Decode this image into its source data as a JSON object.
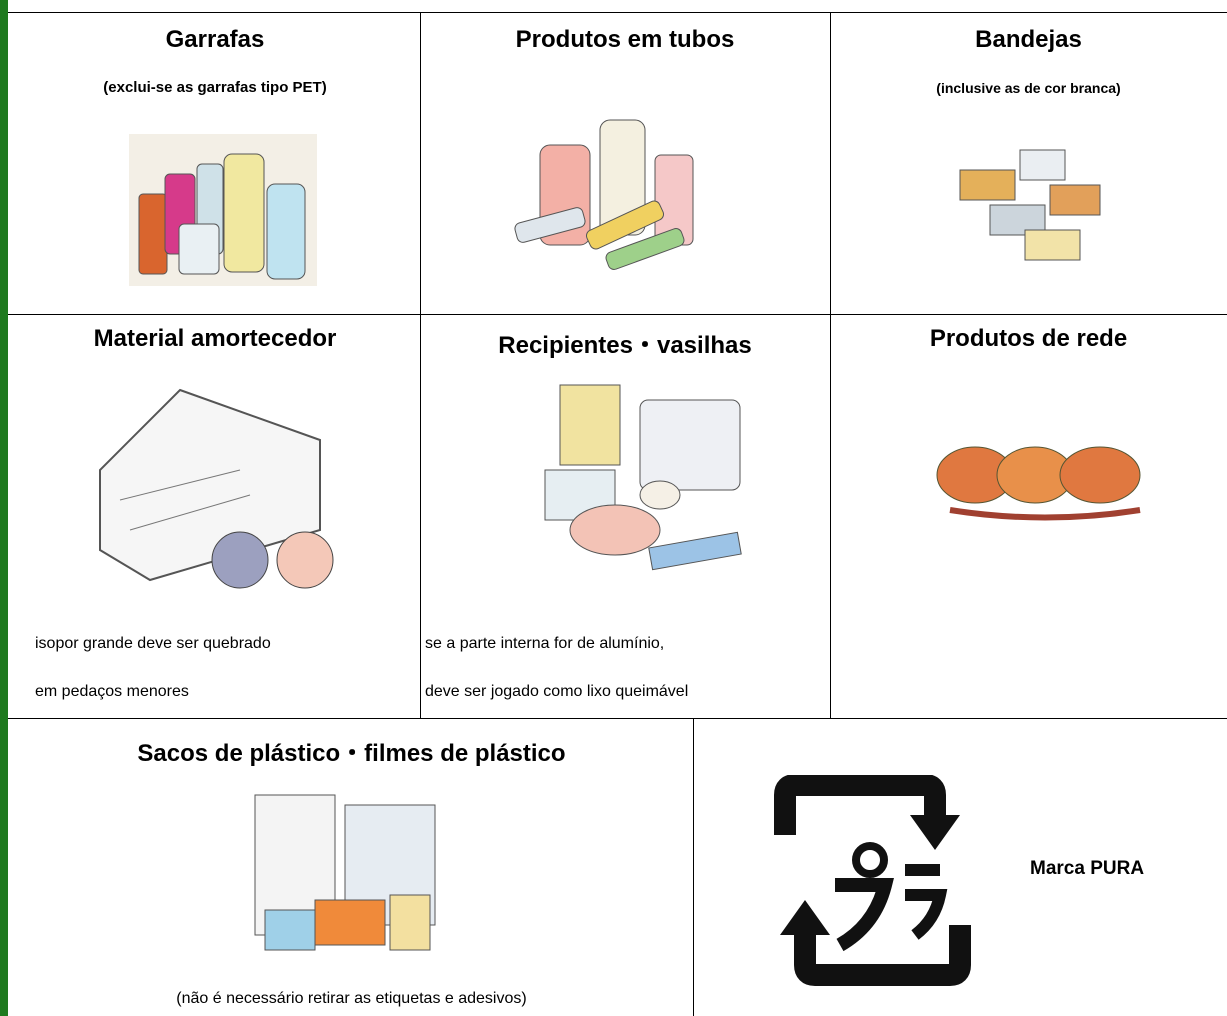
{
  "cells": [
    {
      "title": "Garrafas",
      "subtitle": "(exclui-se as garrafas tipo PET)"
    },
    {
      "title": "Produtos em tubos"
    },
    {
      "title": "Bandejas",
      "subtitle": "(inclusive as de cor branca)"
    },
    {
      "title": "Material amortecedor",
      "notes": [
        "isopor grande deve ser quebrado",
        "em pedaços menores"
      ]
    },
    {
      "title": "Recipientes・vasilhas",
      "notes": [
        "se a parte interna for de alumínio,",
        "deve ser jogado como lixo queimável"
      ]
    },
    {
      "title": "Produtos de rede"
    },
    {
      "title": "Sacos de plástico・filmes de plástico",
      "notes": [
        "(não é necessário retirar as etiquetas e adesivos)"
      ]
    }
  ],
  "pura": {
    "label": "Marca PURA"
  }
}
